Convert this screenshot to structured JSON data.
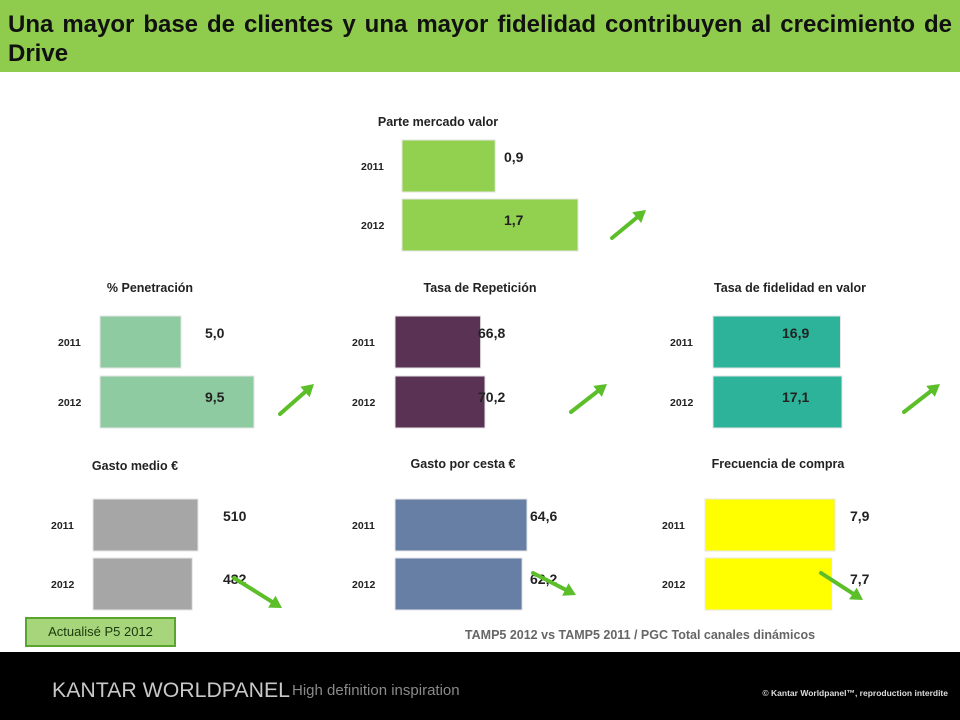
{
  "header": {
    "title": "Una mayor base de clientes y una mayor fidelidad contribuyen al crecimiento de Drive"
  },
  "chart_data": [
    {
      "type": "bar",
      "title": "Parte  mercado valor",
      "categories": [
        "2011",
        "2012"
      ],
      "values": [
        0.9,
        1.7
      ],
      "value_labels": [
        "0,9",
        "1,7"
      ],
      "color": "#92d050",
      "trend": "up"
    },
    {
      "type": "bar",
      "title": "% Penetración",
      "categories": [
        "2011",
        "2012"
      ],
      "values": [
        5.0,
        9.5
      ],
      "value_labels": [
        "5,0",
        "9,5"
      ],
      "color": "#8ecba0",
      "trend": "up"
    },
    {
      "type": "bar",
      "title": "Tasa de Repetición",
      "categories": [
        "2011",
        "2012"
      ],
      "values": [
        66.8,
        70.2
      ],
      "value_labels": [
        "66,8",
        "70,2"
      ],
      "color": "#5a3254",
      "trend": "up"
    },
    {
      "type": "bar",
      "title": "Tasa de fidelidad en valor",
      "categories": [
        "2011",
        "2012"
      ],
      "values": [
        16.9,
        17.1
      ],
      "value_labels": [
        "16,9",
        "17,1"
      ],
      "color": "#2cb39a",
      "trend": "up"
    },
    {
      "type": "bar",
      "title": "Gasto medio €",
      "categories": [
        "2011",
        "2012"
      ],
      "values": [
        510,
        482
      ],
      "value_labels": [
        "510",
        "482"
      ],
      "color": "#a6a6a6",
      "trend": "down"
    },
    {
      "type": "bar",
      "title": "Gasto por cesta €",
      "categories": [
        "2011",
        "2012"
      ],
      "values": [
        64.6,
        62.2
      ],
      "value_labels": [
        "64,6",
        "62,2"
      ],
      "color": "#677fa5",
      "trend": "down"
    },
    {
      "type": "bar",
      "title": "Frecuencia de compra",
      "categories": [
        "2011",
        "2012"
      ],
      "values": [
        7.9,
        7.7
      ],
      "value_labels": [
        "7,9",
        "7,7"
      ],
      "color": "#ffff00",
      "trend": "down"
    }
  ],
  "colors": {
    "header_bg": "#8fcc4e",
    "trend_up": "#5cbf2a",
    "trend_down": "#5cbf2a",
    "footer_bg": "#000000"
  },
  "stamp": {
    "label": "Actualisé P5 2012"
  },
  "source": {
    "text": "TAMP5 2012 vs TAMP5 2011 / PGC Total canales dinámicos"
  },
  "footer": {
    "logo_text": "KANTAR WORLDPANEL",
    "tagline": "High definition inspiration",
    "copyright": "© Kantar Worldpanel™, reproduction interdite"
  },
  "icons": [
    "trend-up-arrow-icon",
    "trend-down-arrow-icon"
  ]
}
